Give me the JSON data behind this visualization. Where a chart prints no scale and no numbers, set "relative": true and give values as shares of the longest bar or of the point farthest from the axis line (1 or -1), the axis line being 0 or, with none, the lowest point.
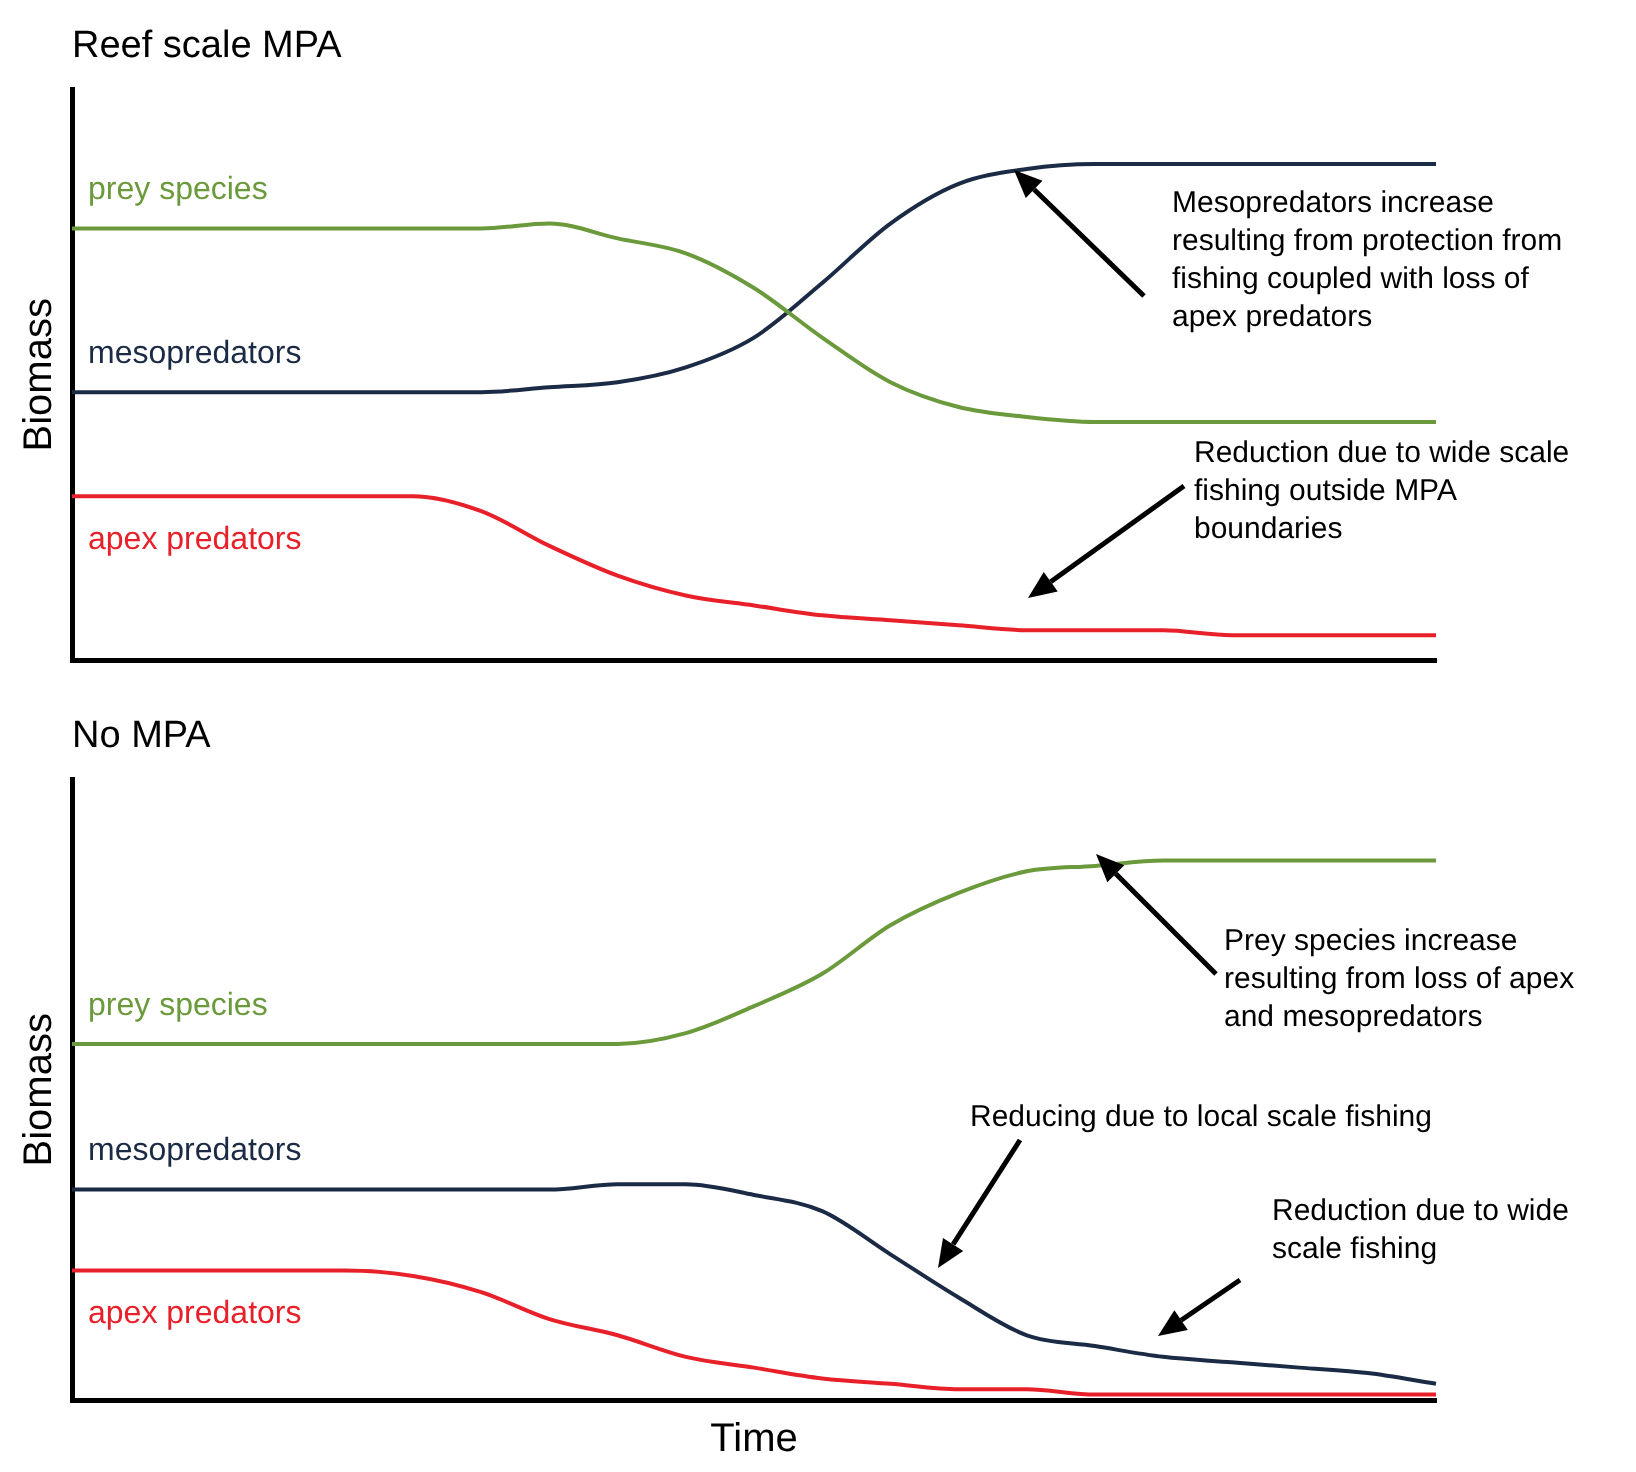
{
  "chart_data": [
    {
      "type": "line",
      "relative": true,
      "title": "Reef scale MPA",
      "ylabel": "Biomass",
      "tick_labels": false,
      "categories": [
        null,
        null,
        null,
        null,
        null,
        null,
        null,
        null,
        null,
        null,
        null,
        null,
        null,
        null,
        null,
        null,
        null,
        null,
        null,
        null,
        null
      ],
      "series": [
        {
          "name": "prey species",
          "color": "#6b9a3c",
          "values": [
            0.87,
            0.87,
            0.87,
            0.87,
            0.87,
            0.87,
            0.87,
            0.88,
            0.85,
            0.82,
            0.75,
            0.65,
            0.56,
            0.51,
            0.49,
            0.48,
            0.48,
            0.48,
            0.48,
            0.48,
            0.48
          ]
        },
        {
          "name": "mesopredators",
          "color": "#1c2b45",
          "values": [
            0.54,
            0.54,
            0.54,
            0.54,
            0.54,
            0.54,
            0.54,
            0.55,
            0.56,
            0.59,
            0.65,
            0.76,
            0.88,
            0.96,
            0.99,
            1,
            1,
            1,
            1,
            1,
            1
          ]
        },
        {
          "name": "apex predators",
          "color": "#e8202a",
          "values": [
            0.33,
            0.33,
            0.33,
            0.33,
            0.33,
            0.33,
            0.3,
            0.23,
            0.17,
            0.13,
            0.11,
            0.09,
            0.08,
            0.07,
            0.06,
            0.06,
            0.06,
            0.05,
            0.05,
            0.05,
            0.05
          ]
        }
      ],
      "annotations": [
        "Mesopredators increase resulting from protection from fishing coupled with loss of apex predators",
        "Reduction due to wide scale fishing outside MPA boundaries"
      ]
    },
    {
      "type": "line",
      "relative": true,
      "title": "No MPA",
      "ylabel": "Biomass",
      "xlabel": "Time",
      "tick_labels": false,
      "categories": [
        null,
        null,
        null,
        null,
        null,
        null,
        null,
        null,
        null,
        null,
        null,
        null,
        null,
        null,
        null,
        null,
        null,
        null,
        null,
        null,
        null
      ],
      "series": [
        {
          "name": "prey species",
          "color": "#6b9a3c",
          "values": [
            0.66,
            0.66,
            0.66,
            0.66,
            0.66,
            0.66,
            0.66,
            0.66,
            0.66,
            0.68,
            0.73,
            0.79,
            0.88,
            0.94,
            0.98,
            0.99,
            1,
            1,
            1,
            1,
            1
          ]
        },
        {
          "name": "mesopredators",
          "color": "#1c2b45",
          "values": [
            0.39,
            0.39,
            0.39,
            0.39,
            0.39,
            0.39,
            0.39,
            0.39,
            0.4,
            0.4,
            0.38,
            0.35,
            0.27,
            0.19,
            0.12,
            0.1,
            0.08,
            0.07,
            0.06,
            0.05,
            0.03
          ]
        },
        {
          "name": "apex predators",
          "color": "#e8202a",
          "values": [
            0.24,
            0.24,
            0.24,
            0.24,
            0.24,
            0.23,
            0.2,
            0.15,
            0.12,
            0.08,
            0.06,
            0.04,
            0.03,
            0.02,
            0.02,
            0.01,
            0.01,
            0.01,
            0.01,
            0.01,
            0.01
          ]
        }
      ],
      "annotations": [
        "Prey species increase resulting from loss of apex and mesopredators",
        "Reducing due to local scale fishing",
        "Reduction due to wide scale fishing"
      ]
    }
  ]
}
